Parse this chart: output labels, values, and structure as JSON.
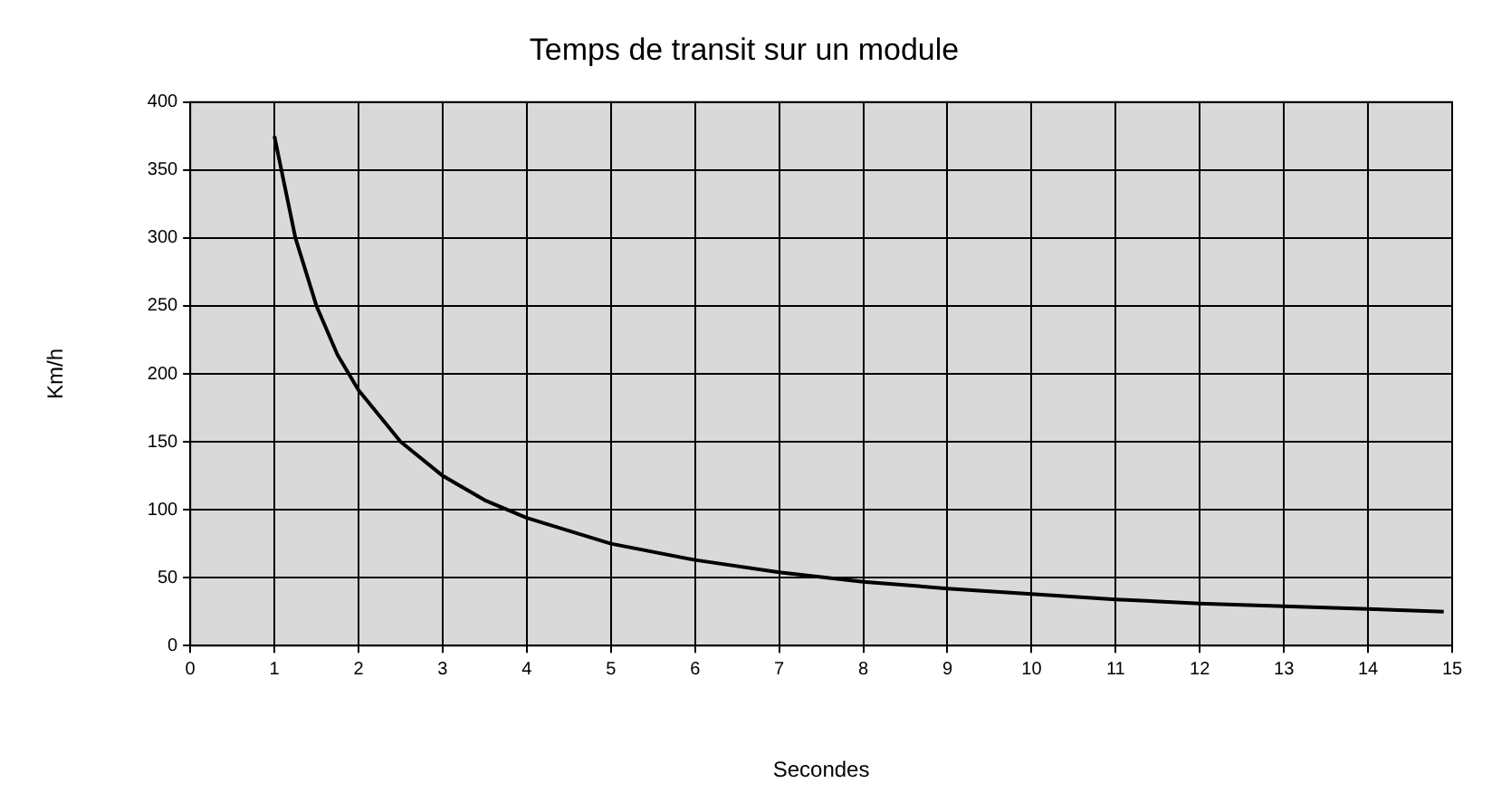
{
  "chart_data": {
    "type": "line",
    "title": "Temps de transit sur un module",
    "xlabel": "Secondes",
    "ylabel": "Km/h",
    "x": [
      1,
      1.25,
      1.5,
      1.75,
      2,
      2.5,
      3,
      3.5,
      4,
      5,
      6,
      7,
      8,
      9,
      10,
      11,
      12,
      13,
      14,
      14.9
    ],
    "series": [
      {
        "color": "#000000",
        "values": [
          375,
          300,
          250,
          214,
          188,
          150,
          125,
          107,
          94,
          75,
          63,
          54,
          47,
          42,
          38,
          34,
          31,
          29,
          27,
          25
        ]
      }
    ],
    "xlim": [
      0,
      15
    ],
    "xticks": [
      0,
      1,
      2,
      3,
      4,
      5,
      6,
      7,
      8,
      9,
      10,
      11,
      12,
      13,
      14,
      15
    ],
    "ylim": [
      0,
      400
    ],
    "yticks": [
      0,
      50,
      100,
      150,
      200,
      250,
      300,
      350,
      400
    ],
    "grid": true,
    "legend": false,
    "marker": "none",
    "line_style": "solid"
  }
}
